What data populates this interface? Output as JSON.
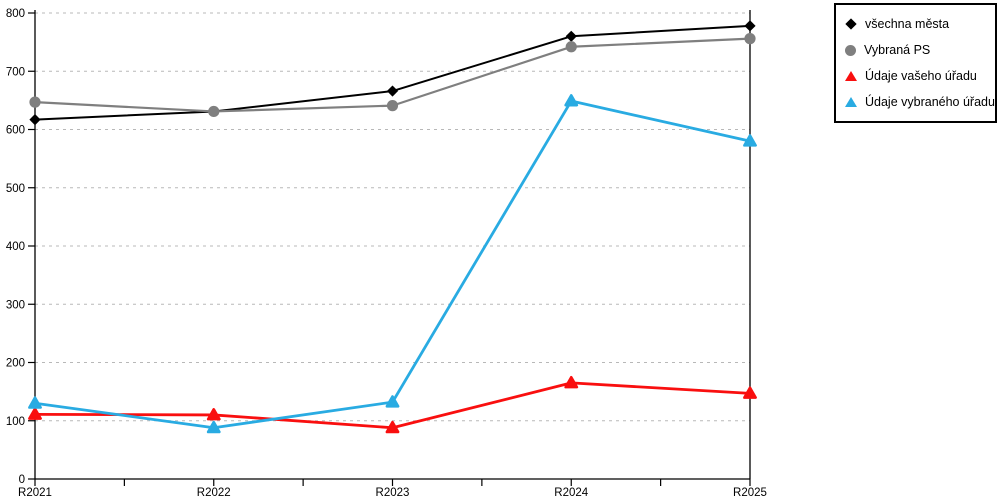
{
  "chart_data": {
    "type": "line",
    "title": "",
    "xlabel": "",
    "ylabel": "",
    "categories": [
      "R2021",
      "R2022",
      "R2023",
      "R2024",
      "R2025"
    ],
    "series": [
      {
        "name": "všechna města",
        "marker": "diamond",
        "color": "#000000",
        "line_width": 2,
        "values": [
          617,
          631,
          666,
          760,
          778
        ]
      },
      {
        "name": "Vybraná PS",
        "marker": "circle",
        "color": "#7f7f7f",
        "line_width": 2.2,
        "values": [
          647,
          631,
          641,
          742,
          756
        ]
      },
      {
        "name": "Údaje vašeho úřadu",
        "marker": "triangle",
        "color": "#f90f0f",
        "line_width": 2.8,
        "values": [
          111,
          110,
          88,
          165,
          147
        ]
      },
      {
        "name": "Údaje vybraného úřadu",
        "marker": "triangle",
        "color": "#29abe2",
        "line_width": 2.8,
        "values": [
          130,
          88,
          132,
          649,
          580
        ]
      }
    ],
    "ylim": [
      0,
      800
    ],
    "y_ticks": [
      0,
      100,
      200,
      300,
      400,
      500,
      600,
      700,
      800
    ],
    "grid": "horizontal-dashed",
    "grid_color": "#b8b8b8",
    "axis_color": "#000000",
    "legend_position": "top-right"
  }
}
